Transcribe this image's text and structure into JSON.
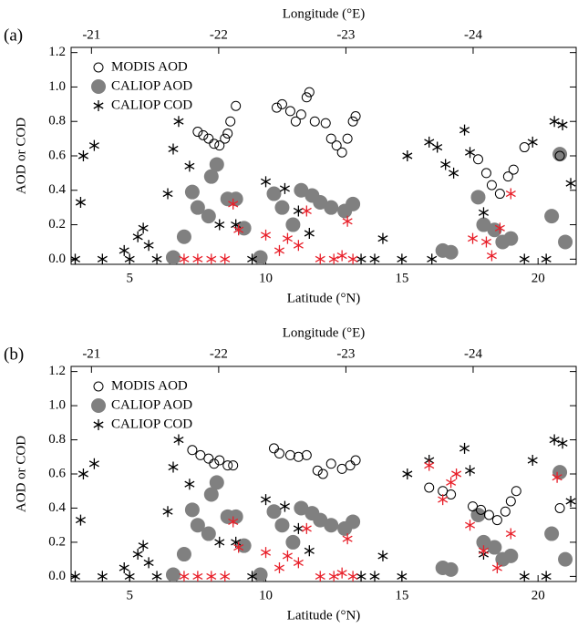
{
  "chart_data": [
    {
      "type": "scatter",
      "panel_label": "(a)",
      "x2label": "Longitude (°E)",
      "xlabel": "Latitude (°N)",
      "ylabel": "AOD or COD",
      "xlim": [
        2.85,
        21.4
      ],
      "xticks": [
        5,
        10,
        15,
        20
      ],
      "x2lim": [
        -20.84,
        -24.81
      ],
      "x2ticks": [
        -21,
        -22,
        -23,
        -24
      ],
      "ylim": [
        -0.03,
        1.23
      ],
      "yticks": [
        {
          "value": 0,
          "label": "0.0"
        },
        0.2,
        0.4,
        0.6,
        0.8,
        {
          "value": 1,
          "label": "1.0"
        },
        1.2
      ],
      "series": [
        {
          "name": "MODIS AOD",
          "marker": "open-circle",
          "color": "#000000",
          "x": [
            7.5,
            7.7,
            7.9,
            8.1,
            8.3,
            8.5,
            8.6,
            8.7,
            8.9,
            10.4,
            10.6,
            10.9,
            11.1,
            11.3,
            11.5,
            11.6,
            11.8,
            12.2,
            12.4,
            12.6,
            12.8,
            13.0,
            13.2,
            13.3,
            17.8,
            18.1,
            18.3,
            18.6,
            18.9,
            19.1,
            19.5,
            20.8
          ],
          "values": [
            0.74,
            0.72,
            0.7,
            0.67,
            0.66,
            0.7,
            0.73,
            0.8,
            0.89,
            0.88,
            0.9,
            0.86,
            0.8,
            0.84,
            0.94,
            0.97,
            0.8,
            0.79,
            0.7,
            0.66,
            0.62,
            0.7,
            0.8,
            0.83,
            0.58,
            0.5,
            0.43,
            0.38,
            0.48,
            0.52,
            0.65,
            0.6
          ]
        },
        {
          "name": "CALIOP AOD",
          "marker": "filled-circle",
          "color": "#808080",
          "x": [
            7.0,
            7.3,
            7.5,
            7.9,
            8.0,
            8.2,
            8.6,
            8.9,
            9.2,
            10.3,
            10.6,
            11.0,
            11.3,
            11.7,
            12.0,
            12.4,
            12.9,
            13.2,
            16.5,
            16.8,
            17.8,
            18.0,
            18.4,
            18.7,
            19.0,
            20.5,
            20.8,
            21.0,
            6.6,
            9.8
          ],
          "values": [
            0.13,
            0.39,
            0.3,
            0.25,
            0.48,
            0.55,
            0.35,
            0.35,
            0.18,
            0.38,
            0.3,
            0.2,
            0.4,
            0.37,
            0.33,
            0.3,
            0.28,
            0.32,
            0.05,
            0.04,
            0.36,
            0.2,
            0.17,
            0.1,
            0.12,
            0.25,
            0.61,
            0.1,
            0.01,
            0.01
          ]
        },
        {
          "name": "CALIOP COD",
          "marker": "asterisk",
          "color": "#000000",
          "x": [
            3.2,
            3.3,
            3.7,
            4.8,
            5.3,
            5.5,
            5.7,
            6.4,
            6.6,
            6.8,
            7.2,
            8.3,
            8.9,
            10.0,
            10.7,
            11.2,
            11.6,
            14.3,
            15.2,
            16.0,
            16.3,
            16.6,
            16.9,
            17.3,
            17.5,
            18.0,
            19.8,
            20.6,
            20.9,
            21.2,
            3.0,
            4.0,
            5.0,
            6.0,
            9.5,
            13.5,
            14.0,
            15.0,
            16.1,
            19.5,
            20.3
          ],
          "values": [
            0.33,
            0.6,
            0.66,
            0.05,
            0.13,
            0.18,
            0.08,
            0.38,
            0.64,
            0.8,
            0.54,
            0.2,
            0.2,
            0.45,
            0.41,
            0.28,
            0.15,
            0.12,
            0.6,
            0.68,
            0.65,
            0.55,
            0.5,
            0.75,
            0.62,
            0.27,
            0.68,
            0.8,
            0.78,
            0.44,
            0,
            0,
            0,
            0,
            0,
            0,
            0,
            0,
            0,
            0,
            0
          ]
        },
        {
          "marker": "asterisk",
          "color": "#e8202a",
          "x": [
            7.0,
            7.5,
            8.0,
            8.5,
            8.8,
            9.0,
            10.0,
            10.5,
            10.8,
            11.2,
            11.5,
            12.0,
            12.5,
            12.8,
            13.0,
            13.2,
            17.6,
            18.1,
            18.6,
            19.0,
            18.3
          ],
          "values": [
            0,
            0,
            0,
            0,
            0.32,
            0.17,
            0.14,
            0.05,
            0.12,
            0.08,
            0.28,
            0,
            0,
            0.02,
            0.22,
            0,
            0.12,
            0.1,
            0.18,
            0.38,
            0.02
          ]
        }
      ]
    },
    {
      "type": "scatter",
      "panel_label": "(b)",
      "x2label": "Longitude (°E)",
      "xlabel": "Latitude (°N)",
      "ylabel": "AOD or COD",
      "xlim": [
        2.85,
        21.4
      ],
      "xticks": [
        5,
        10,
        15,
        20
      ],
      "x2lim": [
        -20.84,
        -24.81
      ],
      "x2ticks": [
        -21,
        -22,
        -23,
        -24
      ],
      "ylim": [
        -0.03,
        1.23
      ],
      "yticks": [
        {
          "value": 0,
          "label": "0.0"
        },
        0.2,
        0.4,
        0.6,
        0.8,
        {
          "value": 1,
          "label": "1.0"
        },
        1.2
      ],
      "series": [
        {
          "name": "MODIS AOD",
          "marker": "open-circle",
          "color": "#000000",
          "x": [
            7.3,
            7.6,
            7.9,
            8.1,
            8.3,
            8.6,
            8.8,
            10.3,
            10.5,
            10.9,
            11.2,
            11.5,
            11.9,
            12.1,
            12.4,
            12.8,
            13.1,
            13.3,
            16.0,
            16.5,
            16.8,
            17.6,
            17.9,
            18.2,
            18.5,
            18.8,
            19.0,
            19.2,
            20.8
          ],
          "values": [
            0.74,
            0.71,
            0.69,
            0.66,
            0.68,
            0.65,
            0.65,
            0.75,
            0.72,
            0.71,
            0.7,
            0.71,
            0.62,
            0.6,
            0.66,
            0.63,
            0.65,
            0.68,
            0.52,
            0.5,
            0.48,
            0.41,
            0.39,
            0.36,
            0.33,
            0.38,
            0.44,
            0.5,
            0.4
          ]
        },
        {
          "name": "CALIOP AOD",
          "marker": "filled-circle",
          "color": "#808080",
          "x": [
            7.0,
            7.3,
            7.5,
            7.9,
            8.0,
            8.2,
            8.6,
            8.9,
            9.2,
            10.3,
            10.6,
            11.0,
            11.3,
            11.7,
            12.0,
            12.4,
            12.9,
            13.2,
            16.5,
            16.8,
            17.8,
            18.0,
            18.4,
            18.7,
            19.0,
            20.5,
            20.8,
            21.0,
            6.6,
            9.8
          ],
          "values": [
            0.13,
            0.39,
            0.3,
            0.25,
            0.48,
            0.55,
            0.35,
            0.35,
            0.18,
            0.38,
            0.3,
            0.2,
            0.4,
            0.37,
            0.33,
            0.3,
            0.28,
            0.32,
            0.05,
            0.04,
            0.36,
            0.2,
            0.17,
            0.1,
            0.12,
            0.25,
            0.61,
            0.1,
            0.01,
            0.01
          ]
        },
        {
          "name": "CALIOP COD",
          "marker": "asterisk",
          "color": "#000000",
          "x": [
            3.2,
            3.3,
            3.7,
            4.8,
            5.3,
            5.5,
            5.7,
            6.4,
            6.6,
            6.8,
            7.2,
            8.3,
            8.9,
            10.0,
            10.7,
            11.2,
            11.6,
            14.3,
            15.2,
            16.0,
            17.3,
            17.5,
            18.0,
            19.8,
            20.6,
            20.9,
            21.2,
            3.0,
            4.0,
            5.0,
            6.0,
            9.5,
            13.5,
            14.0,
            15.0,
            19.5,
            20.3
          ],
          "values": [
            0.33,
            0.6,
            0.66,
            0.05,
            0.13,
            0.18,
            0.08,
            0.38,
            0.64,
            0.8,
            0.54,
            0.2,
            0.2,
            0.45,
            0.41,
            0.28,
            0.15,
            0.12,
            0.6,
            0.68,
            0.75,
            0.62,
            0.13,
            0.68,
            0.8,
            0.78,
            0.44,
            0,
            0,
            0,
            0,
            0,
            0,
            0,
            0,
            0,
            0
          ]
        },
        {
          "marker": "asterisk",
          "color": "#e8202a",
          "x": [
            7.0,
            7.5,
            8.0,
            8.5,
            8.8,
            9.0,
            10.0,
            10.5,
            10.8,
            11.2,
            11.5,
            12.0,
            12.5,
            12.8,
            13.0,
            13.2,
            16.0,
            16.5,
            16.8,
            17.0,
            17.5,
            18.0,
            18.5,
            19.0,
            20.7
          ],
          "values": [
            0,
            0,
            0,
            0,
            0.32,
            0.17,
            0.14,
            0.05,
            0.12,
            0.08,
            0.28,
            0,
            0,
            0.02,
            0.22,
            0,
            0.65,
            0.45,
            0.55,
            0.6,
            0.3,
            0.15,
            0.05,
            0.25,
            0.58
          ]
        }
      ]
    }
  ]
}
